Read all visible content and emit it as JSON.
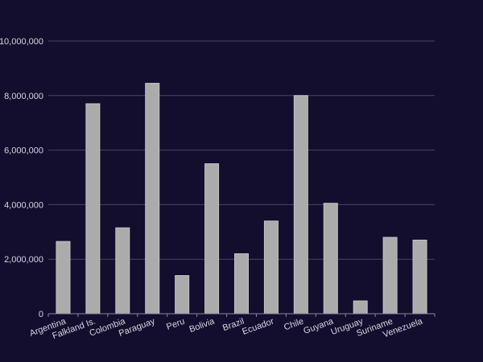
{
  "colors": {
    "background": "#130d2e",
    "bar": "#ababab",
    "grid": "#4a4568"
  },
  "chart_data": {
    "type": "bar",
    "title": "",
    "xlabel": "",
    "ylabel": "",
    "categories": [
      "Argentina",
      "Falkland Is.",
      "Colombia",
      "Paraguay",
      "Peru",
      "Bolivia",
      "Brazil",
      "Ecuador",
      "Chile",
      "Guyana",
      "Uruguay",
      "Suriname",
      "Venezuela"
    ],
    "values": [
      2650000,
      7700000,
      3150000,
      8450000,
      1400000,
      5500000,
      2200000,
      3400000,
      8000000,
      4050000,
      470000,
      2800000,
      2700000
    ],
    "ylim": [
      0,
      10000000
    ],
    "yticks": [
      0,
      2000000,
      4000000,
      6000000,
      8000000,
      10000000
    ],
    "ytick_labels": [
      "0",
      "2,000,000",
      "4,000,000",
      "6,000,000",
      "8,000,000",
      "10,000,000"
    ],
    "grid": true,
    "legend": "none"
  }
}
